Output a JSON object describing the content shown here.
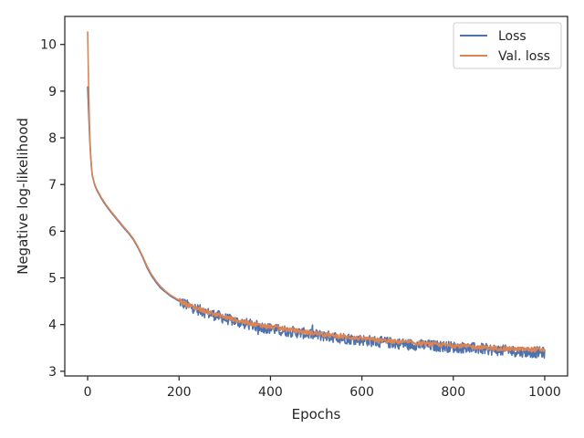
{
  "chart_data": {
    "type": "line",
    "title": "",
    "xlabel": "Epochs",
    "ylabel": "Negative log-likelihood",
    "xlim": [
      -50,
      1050
    ],
    "ylim": [
      2.9,
      10.6
    ],
    "x_ticks": [
      0,
      200,
      400,
      600,
      800,
      1000
    ],
    "y_ticks": [
      3,
      4,
      5,
      6,
      7,
      8,
      9,
      10
    ],
    "grid": false,
    "legend_position": "top-right",
    "series": [
      {
        "name": "Loss",
        "color": "#4c72b0",
        "x": [
          0,
          2,
          4,
          6,
          8,
          10,
          15,
          20,
          30,
          40,
          50,
          60,
          70,
          80,
          90,
          100,
          110,
          120,
          130,
          140,
          150,
          160,
          170,
          180,
          200,
          220,
          240,
          260,
          280,
          300,
          340,
          380,
          420,
          460,
          500,
          550,
          600,
          650,
          700,
          750,
          800,
          850,
          900,
          950,
          1000
        ],
        "values": [
          9.1,
          8.6,
          8.1,
          7.7,
          7.4,
          7.2,
          7.0,
          6.88,
          6.7,
          6.55,
          6.42,
          6.3,
          6.18,
          6.06,
          5.95,
          5.82,
          5.65,
          5.45,
          5.22,
          5.04,
          4.9,
          4.78,
          4.7,
          4.62,
          4.5,
          4.4,
          4.33,
          4.25,
          4.2,
          4.13,
          4.03,
          3.95,
          3.88,
          3.83,
          3.78,
          3.72,
          3.67,
          3.62,
          3.58,
          3.55,
          3.52,
          3.49,
          3.45,
          3.42,
          3.4
        ],
        "noise_from_epoch": 200,
        "noise_amplitude": 0.12
      },
      {
        "name": "Val. loss",
        "color": "#dd8452",
        "x": [
          0,
          2,
          4,
          6,
          8,
          10,
          15,
          20,
          30,
          40,
          50,
          60,
          70,
          80,
          90,
          100,
          110,
          120,
          130,
          140,
          150,
          160,
          170,
          180,
          200,
          220,
          240,
          260,
          280,
          300,
          340,
          380,
          420,
          460,
          500,
          550,
          600,
          650,
          700,
          750,
          800,
          850,
          900,
          950,
          1000
        ],
        "values": [
          10.28,
          9.2,
          8.3,
          7.75,
          7.45,
          7.22,
          7.02,
          6.9,
          6.72,
          6.57,
          6.44,
          6.32,
          6.2,
          6.08,
          5.97,
          5.84,
          5.67,
          5.47,
          5.25,
          5.07,
          4.93,
          4.81,
          4.72,
          4.64,
          4.52,
          4.42,
          4.35,
          4.28,
          4.22,
          4.16,
          4.06,
          3.98,
          3.92,
          3.86,
          3.81,
          3.75,
          3.7,
          3.65,
          3.62,
          3.58,
          3.55,
          3.52,
          3.49,
          3.47,
          3.46
        ],
        "noise_from_epoch": 200,
        "noise_amplitude": 0.05
      }
    ]
  }
}
